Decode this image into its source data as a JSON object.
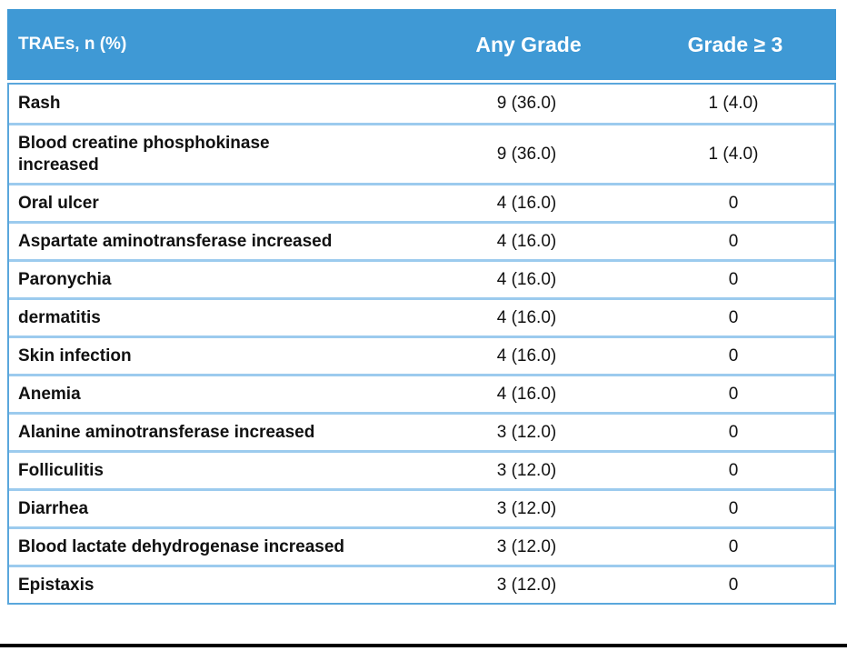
{
  "table": {
    "columns": {
      "label": "TRAEs, n (%)",
      "any_grade": "Any Grade",
      "grade_ge3": "Grade ≥ 3"
    },
    "rows": [
      {
        "label": "Rash",
        "any_grade": "9 (36.0)",
        "grade_ge3": "1 (4.0)"
      },
      {
        "label": "Blood creatine phosphokinase increased",
        "any_grade": "9 (36.0)",
        "grade_ge3": "1 (4.0)"
      },
      {
        "label": "Oral ulcer",
        "any_grade": "4 (16.0)",
        "grade_ge3": "0"
      },
      {
        "label": "Aspartate aminotransferase increased",
        "any_grade": "4 (16.0)",
        "grade_ge3": "0"
      },
      {
        "label": "Paronychia",
        "any_grade": "4 (16.0)",
        "grade_ge3": "0"
      },
      {
        "label": "dermatitis",
        "any_grade": "4 (16.0)",
        "grade_ge3": "0"
      },
      {
        "label": "Skin infection",
        "any_grade": "4 (16.0)",
        "grade_ge3": "0"
      },
      {
        "label": "Anemia",
        "any_grade": "4 (16.0)",
        "grade_ge3": "0"
      },
      {
        "label": "Alanine aminotransferase increased",
        "any_grade": "3 (12.0)",
        "grade_ge3": "0"
      },
      {
        "label": "Folliculitis",
        "any_grade": "3 (12.0)",
        "grade_ge3": "0"
      },
      {
        "label": "Diarrhea",
        "any_grade": "3 (12.0)",
        "grade_ge3": "0"
      },
      {
        "label": "Blood lactate dehydrogenase increased",
        "any_grade": "3 (12.0)",
        "grade_ge3": "0"
      },
      {
        "label": "Epistaxis",
        "any_grade": "3 (12.0)",
        "grade_ge3": "0"
      }
    ]
  },
  "colors": {
    "header_background": "#3f99d5",
    "header_text": "#ffffff",
    "outer_border": "#5aa7dc",
    "row_separator": "#9ccbee",
    "body_text": "#111111",
    "bottom_rule": "#000000"
  }
}
